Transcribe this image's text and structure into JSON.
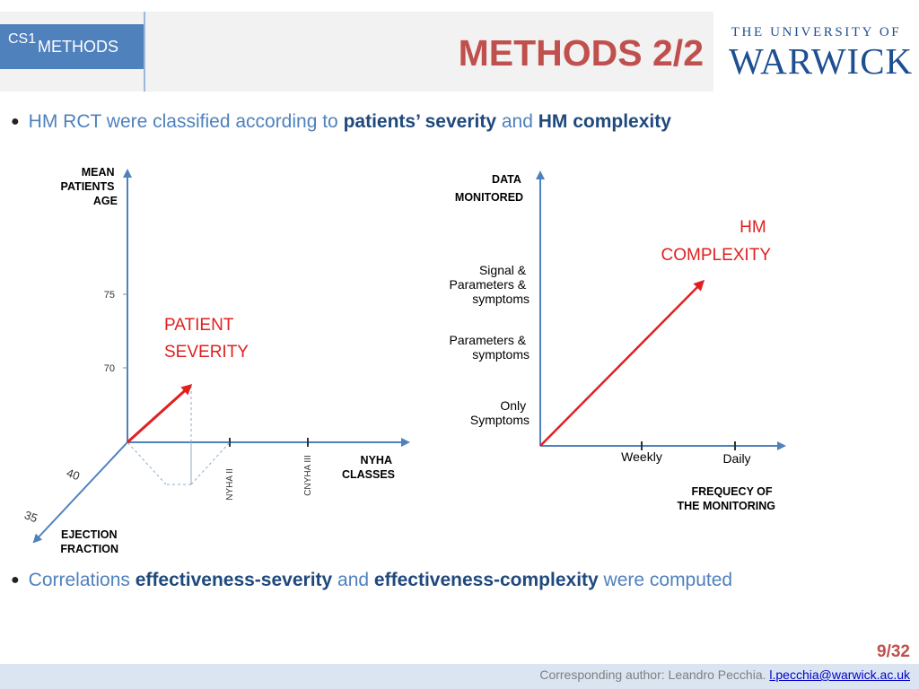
{
  "header": {
    "section_prefix": "CS1",
    "section_label": "METHODS",
    "title": "METHODS 2/2",
    "logo_line1": "THE UNIVERSITY OF",
    "logo_line2": "WARWICK"
  },
  "bullets": {
    "b1": {
      "pre": "HM RCT were classified according to ",
      "em1": "patients’ severity",
      "mid": " and ",
      "em2": "HM complexity"
    },
    "b2": {
      "pre": "Correlations ",
      "em1": "effectiveness-severity",
      "mid": " and ",
      "em2": "effectiveness-complexity",
      "post": " were computed"
    }
  },
  "diagram_left": {
    "y_label": [
      "MEAN",
      "PATIENTS",
      "AGE"
    ],
    "y_ticks": [
      "75",
      "70"
    ],
    "x_label": [
      "NYHA",
      "CLASSES"
    ],
    "x_ticks": [
      "NYHA II",
      "CNYHA III"
    ],
    "z_label": [
      "EJECTION",
      "FRACTION"
    ],
    "z_ticks": [
      "40",
      "35"
    ],
    "vector_label": [
      "PATIENT",
      "SEVERITY"
    ]
  },
  "diagram_right": {
    "y_label": [
      "DATA",
      "MONITORED"
    ],
    "y_items": [
      [
        "Signal &",
        "Parameters &",
        "symptoms"
      ],
      [
        "Parameters &",
        "symptoms"
      ],
      [
        "Only",
        "Symptoms"
      ]
    ],
    "x_ticks": [
      "Weekly",
      "Daily"
    ],
    "x_label": [
      "FREQUECY OF",
      "THE MONITORING"
    ],
    "vector_label": [
      "HM",
      "COMPLEXITY"
    ]
  },
  "footer": {
    "page": "9/32",
    "author_text": "Corresponding author: Leandro Pecchia. ",
    "email": "l.pecchia@warwick.ac.uk"
  },
  "colors": {
    "axis": "#4f81bd",
    "vector": "#e02020",
    "title": "#c0504d"
  }
}
